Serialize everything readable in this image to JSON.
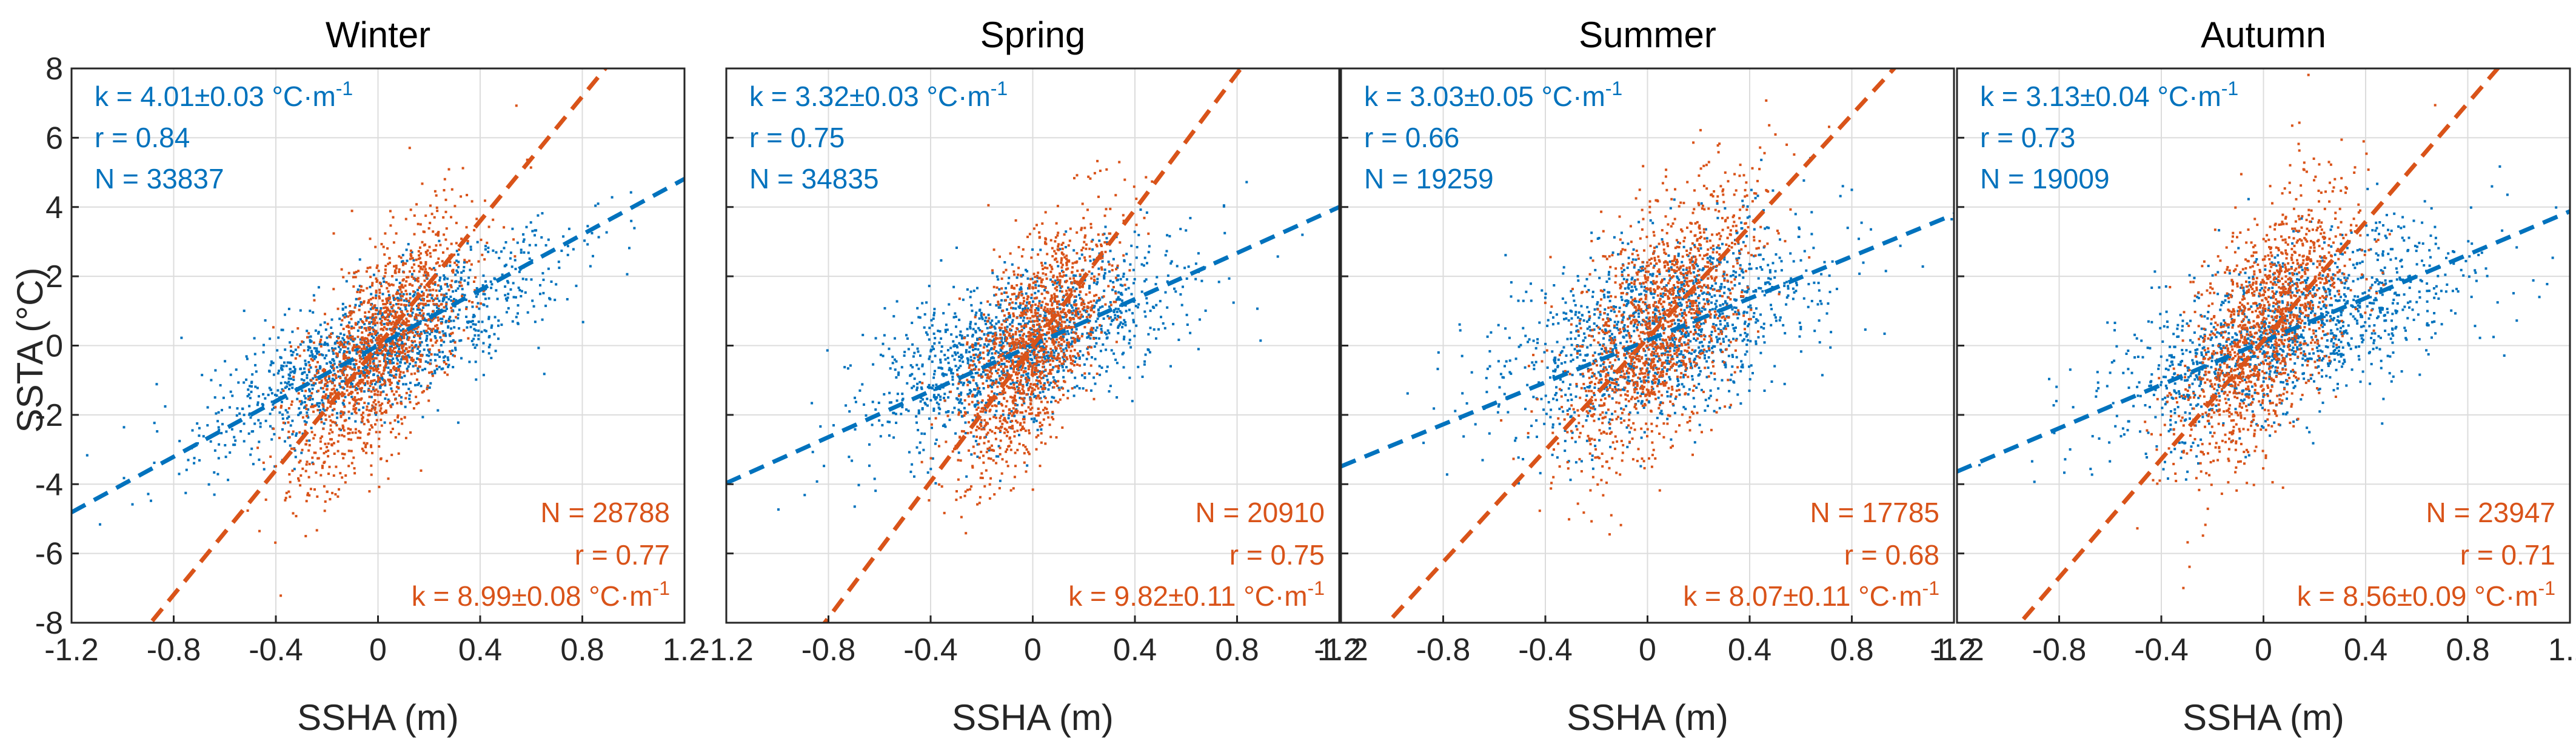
{
  "chart_data": {
    "type": "scatter",
    "xlabel": "SSHA (m)",
    "ylabel": "SSTA (°C)",
    "xlim": [
      -1.2,
      1.2
    ],
    "ylim": [
      -8,
      8
    ],
    "xticks": [
      -1.2,
      -0.8,
      -0.4,
      0,
      0.4,
      0.8,
      1.2
    ],
    "xtick_labels": [
      "-1.2",
      "-0.8",
      "-0.4",
      "0",
      "0.4",
      "0.8",
      "1.2"
    ],
    "yticks": [
      8,
      6,
      4,
      2,
      0,
      -2,
      -4,
      -6,
      -8
    ],
    "ytick_labels": [
      "8",
      "6",
      "4",
      "2",
      "0",
      "-2",
      "-4",
      "-6",
      "-8"
    ],
    "grid": true,
    "colors": {
      "blue": "#0072BD",
      "orange": "#D95319"
    },
    "panels": [
      {
        "title": "Winter",
        "blue": {
          "k_text": "k  = 4.01±0.03 °C·m",
          "unit_sup": "-1",
          "r_text": "r  = 0.84",
          "n_text": "N = 33837",
          "k": 4.01,
          "r": 0.84,
          "n": 33837,
          "center": [
            0.0,
            0.0
          ],
          "spread": [
            0.33,
            1.5
          ]
        },
        "orange": {
          "k_text": "k = 8.99±0.08 °C·m",
          "unit_sup": "-1",
          "r_text": "r =   0.77",
          "n_text": "N = 28788",
          "k": 8.99,
          "r": 0.77,
          "n": 28788,
          "center": [
            0.0,
            0.0
          ],
          "spread": [
            0.17,
            2.0
          ]
        }
      },
      {
        "title": "Spring",
        "blue": {
          "k_text": "k  = 3.32±0.03 °C·m",
          "unit_sup": "-1",
          "r_text": "r  = 0.75",
          "n_text": "N = 34835",
          "k": 3.32,
          "r": 0.75,
          "n": 34835,
          "center": [
            -0.05,
            0.05
          ],
          "spread": [
            0.3,
            1.5
          ]
        },
        "orange": {
          "k_text": "k = 9.82±0.11 °C·m",
          "unit_sup": "-1",
          "r_text": "r =   0.75",
          "n_text": "N = 20910",
          "k": 9.82,
          "r": 0.75,
          "n": 20910,
          "center": [
            0.0,
            0.0
          ],
          "spread": [
            0.15,
            1.9
          ]
        }
      },
      {
        "title": "Summer",
        "blue": {
          "k_text": "k  = 3.03±0.05 °C·m",
          "unit_sup": "-1",
          "r_text": "r  = 0.66",
          "n_text": "N = 19259",
          "k": 3.03,
          "r": 0.66,
          "n": 19259,
          "center": [
            0.05,
            0.5
          ],
          "spread": [
            0.3,
            1.6
          ]
        },
        "orange": {
          "k_text": "k = 8.07±0.11 °C·m",
          "unit_sup": "-1",
          "r_text": "r =   0.68",
          "n_text": "N = 17785",
          "k": 8.07,
          "r": 0.68,
          "n": 17785,
          "center": [
            0.05,
            0.7
          ],
          "spread": [
            0.18,
            2.0
          ]
        }
      },
      {
        "title": "Autumn",
        "blue": {
          "k_text": "k  = 3.13±0.04 °C·m",
          "unit_sup": "-1",
          "r_text": "r  = 0.73",
          "n_text": "N = 19009",
          "k": 3.13,
          "r": 0.73,
          "n": 19009,
          "center": [
            0.1,
            0.4
          ],
          "spread": [
            0.33,
            1.5
          ]
        },
        "orange": {
          "k_text": "k = 8.56±0.09 °C·m",
          "unit_sup": "-1",
          "r_text": "r =   0.71",
          "n_text": "N = 23947",
          "k": 8.56,
          "r": 0.71,
          "n": 23947,
          "center": [
            0.0,
            0.5
          ],
          "spread": [
            0.17,
            2.0
          ]
        }
      }
    ]
  }
}
